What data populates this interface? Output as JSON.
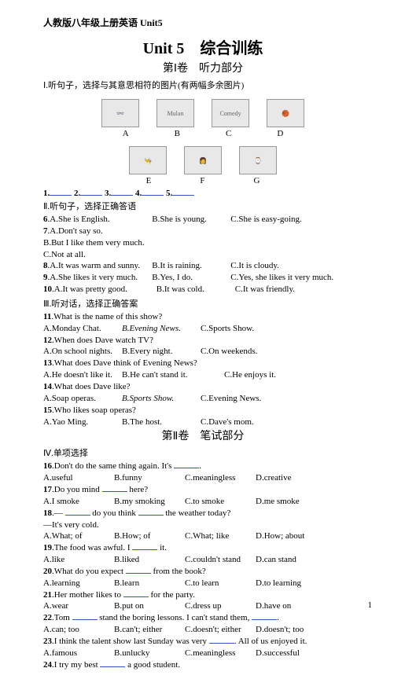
{
  "header": "人教版八年级上册英语 Unit5",
  "title_main": "Unit 5　综合训练",
  "title_sub": "第Ⅰ卷　听力部分",
  "section1": "Ⅰ.听句子，选择与其意思相符的图片(有两幅多余图片)",
  "img_labels_row1": [
    "A",
    "B",
    "C",
    "D"
  ],
  "img_labels_row2": [
    "E",
    "F",
    "G"
  ],
  "blanks_line": {
    "n1": "1.",
    "n2": "2.",
    "n3": "3.",
    "n4": "4.",
    "n5": "5."
  },
  "section2": "Ⅱ.听句子，选择正确答语",
  "q6": {
    "num": "6",
    "a": "A.She is English.",
    "b": "B.She is young.",
    "c": "C.She is easy-going."
  },
  "q7": {
    "num": "7",
    "a": "A.Don't say so.",
    "b": "B.But I like them very much.",
    "c": "C.Not at all."
  },
  "q8": {
    "num": "8",
    "a": "A.It was warm and sunny.",
    "b": "B.It is raining.",
    "c": "C.It is cloudy."
  },
  "q9": {
    "num": "9",
    "a": "A.She likes it very much.",
    "b": "B.Yes, I do.",
    "c": "C.Yes, she likes it very much."
  },
  "q10": {
    "num": "10",
    "a": "A.It was pretty good.",
    "b": "B.It was cold.",
    "c": "C.It was friendly."
  },
  "section3": "Ⅲ.听对话，选择正确答案",
  "q11": {
    "num": "11",
    "text": ".What is the name of this show?",
    "a": "A.Monday Chat.",
    "b": "B.Evening News.",
    "c": "C.Sports Show."
  },
  "q12": {
    "num": "12",
    "text": ".When does Dave watch TV?",
    "a": "A.On school nights.",
    "b": "B.Every night.",
    "c": "C.On weekends."
  },
  "q13": {
    "num": "13",
    "text": ".What does Dave think of Evening News?",
    "a": "A.He doesn't like it.",
    "b": "B.He can't stand it.",
    "c": "C.He enjoys it."
  },
  "q14": {
    "num": "14",
    "text": ".What does Dave like?",
    "a": "A.Soap operas.",
    "b": "B.Sports Show.",
    "c": "C.Evening News."
  },
  "q15": {
    "num": "15",
    "text": ".Who likes soap operas?",
    "a": "A.Yao Ming.",
    "b": "B.The host.",
    "c": "C.Dave's mom."
  },
  "title_sub2": "第Ⅱ卷　笔试部分",
  "section4": "Ⅳ.单项选择",
  "q16": {
    "num": "16",
    "text": ".Don't do the same thing again. It's ",
    "a": "A.useful",
    "b": "B.funny",
    "c": "C.meaningless",
    "d": "D.creative"
  },
  "q17": {
    "num": "17",
    "text": ".Do you mind ",
    "text2": " here?",
    "a": "A.I smoke",
    "b": "B.my smoking",
    "c": "C.to smoke",
    "d": "D.me smoke"
  },
  "q18": {
    "num": "18",
    "text": ".— ",
    "text2": " do you think ",
    "text3": " the weather today?",
    "reply": "—It's very cold.",
    "a": "A.What; of",
    "b": "B.How; of",
    "c": "C.What; like",
    "d": "D.How; about"
  },
  "q19": {
    "num": "19",
    "text": ".The food was awful. I ",
    "text2": " it.",
    "a": "A.like",
    "b": "B.liked",
    "c": "C.couldn't stand",
    "d": "D.can stand"
  },
  "q20": {
    "num": "20",
    "text": ".What do you expect ",
    "text2": " from the book?",
    "a": "A.learning",
    "b": "B.learn",
    "c": "C.to learn",
    "d": "D.to learning"
  },
  "q21": {
    "num": "21",
    "text": ".Her mother likes to ",
    "text2": " for the party.",
    "a": "A.wear",
    "b": "B.put on",
    "c": "C.dress up",
    "d": "D.have on"
  },
  "q22": {
    "num": "22",
    "text": ".Tom ",
    "text2": " stand the boring lessons. I can't stand them, ",
    "a": "A.can; too",
    "b": "B.can't; either",
    "c": "C.doesn't; either",
    "d": "D.doesn't; too"
  },
  "q23": {
    "num": "23",
    "text": ".I think the talent show last Sunday was very ",
    "text2": ". All of us enjoyed it.",
    "a": "A.famous",
    "b": "B.unlucky",
    "c": "C.meaningless",
    "d": "D.successful"
  },
  "q24": {
    "num": "24",
    "text": ".I try my best ",
    "text2": " a good student.",
    "a": "",
    "b": "",
    "c": "",
    "d": ""
  },
  "page_number": "1",
  "colors": {
    "text": "#000000",
    "blank_line": "#3355cc",
    "bg": "#ffffff"
  }
}
